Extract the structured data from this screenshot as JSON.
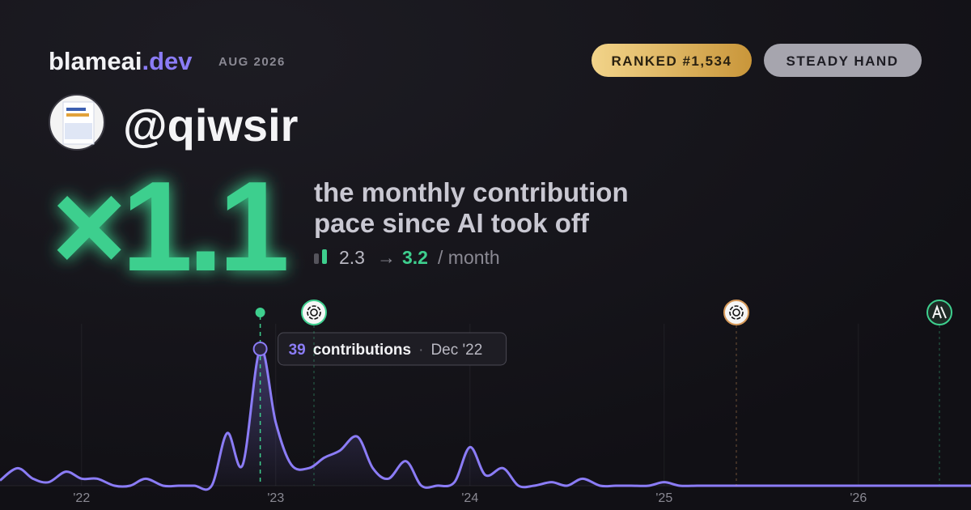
{
  "brand": {
    "name": "blameai",
    "tld": ".dev"
  },
  "period": "AUG 2026",
  "badges": [
    "RANKED #1,534",
    "STEADY HAND"
  ],
  "handle": "@qiwsir",
  "multiplier": "×1.1",
  "description": [
    "the monthly contribution",
    "pace since AI took off"
  ],
  "pace": {
    "before": 2.3,
    "arrow": "→",
    "after": 3.2,
    "unit": "/ month"
  },
  "chart_data": {
    "type": "line",
    "x": [
      2021.58,
      2021.67,
      2021.75,
      2021.83,
      2021.92,
      2022.0,
      2022.08,
      2022.17,
      2022.25,
      2022.33,
      2022.42,
      2022.5,
      2022.58,
      2022.67,
      2022.75,
      2022.83,
      2022.92,
      2023.0,
      2023.08,
      2023.17,
      2023.25,
      2023.33,
      2023.42,
      2023.5,
      2023.58,
      2023.67,
      2023.75,
      2023.83,
      2023.92,
      2024.0,
      2024.08,
      2024.17,
      2024.25,
      2024.33,
      2024.42,
      2024.5,
      2024.58,
      2024.67,
      2024.75,
      2024.83,
      2024.92,
      2025.0,
      2025.08,
      2025.17,
      2025.25,
      2025.33,
      2025.42,
      2025.5,
      2025.58,
      2025.67,
      2025.75,
      2025.83,
      2025.92,
      2026.0,
      2026.08,
      2026.17,
      2026.25,
      2026.33,
      2026.42,
      2026.5,
      2026.58
    ],
    "series": [
      {
        "name": "contributions",
        "color": "#8b7cf6",
        "values": [
          1.5,
          5,
          2,
          1,
          4,
          2,
          2,
          0,
          0,
          2,
          0,
          0,
          0,
          0,
          15,
          6,
          39,
          18,
          6,
          5,
          8,
          10,
          14,
          5,
          2,
          7,
          0,
          0,
          1,
          11,
          3,
          5,
          0,
          0,
          1,
          0,
          2,
          0,
          0,
          0,
          0,
          1,
          0,
          0,
          0,
          0,
          0,
          0,
          0,
          0,
          0,
          0,
          0,
          0,
          0,
          0,
          0,
          0,
          0,
          0,
          0
        ]
      }
    ],
    "xlim": [
      2021.58,
      2026.58
    ],
    "ylim": [
      0,
      45
    ],
    "xticks": [
      {
        "value": 2022,
        "label": "'22"
      },
      {
        "value": 2023,
        "label": "'23"
      },
      {
        "value": 2024,
        "label": "'24"
      },
      {
        "value": 2025,
        "label": "'25"
      },
      {
        "value": 2026,
        "label": "'26"
      }
    ],
    "grid": true,
    "tooltip": {
      "unit": "contributions",
      "separator": "·",
      "date": "Dec '22"
    }
  }
}
